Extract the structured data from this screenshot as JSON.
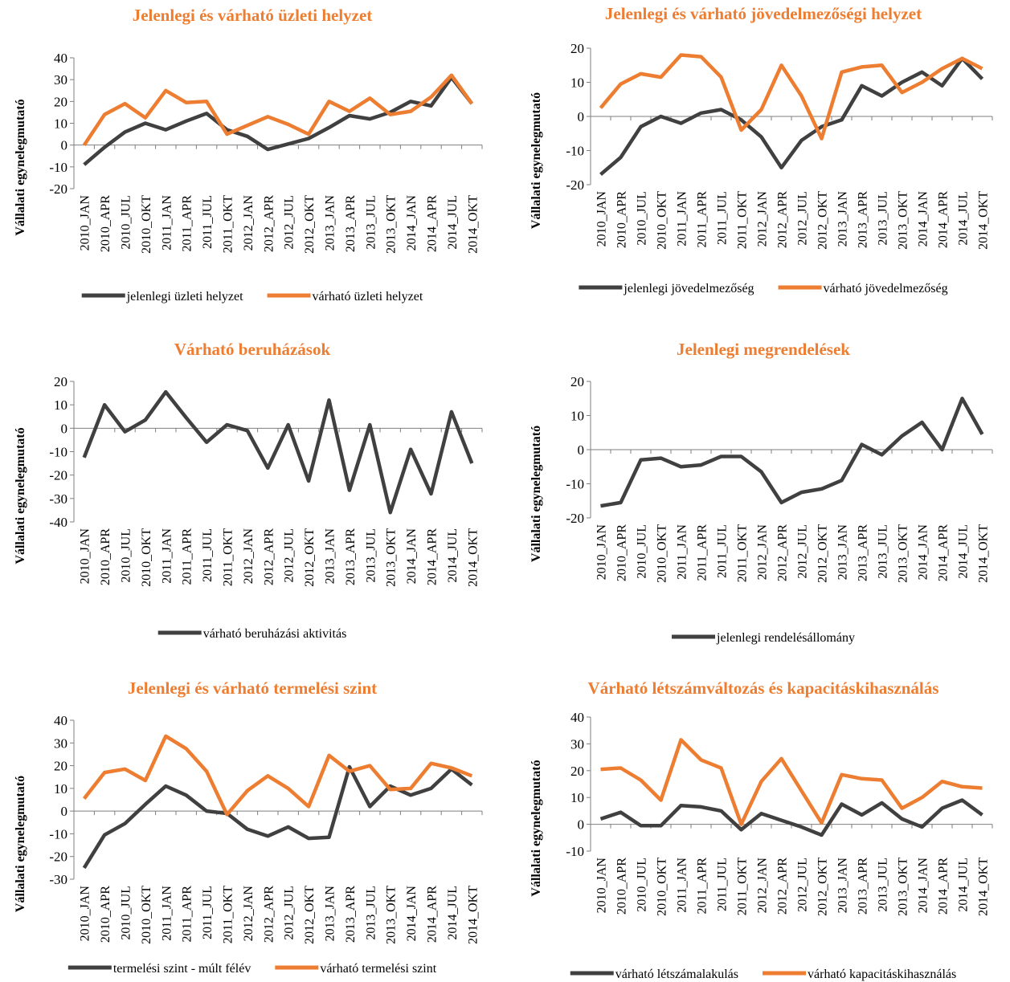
{
  "chart_data": [
    {
      "type": "line",
      "title": "Jelenlegi és várható üzleti helyzet",
      "y_label": "Vállalati egynelegmutató",
      "categories": [
        "2010_JAN",
        "2010_APR",
        "2010_JUL",
        "2010_OKT",
        "2011_JAN",
        "2011_APR",
        "2011_JUL",
        "2011_OKT",
        "2012_JAN",
        "2012_APR",
        "2012_JUL",
        "2012_OKT",
        "2013_JAN",
        "2013_APR",
        "2013_JUL",
        "2013_OKT",
        "2014_JAN",
        "2014_APR",
        "2014_JUL",
        "2014_OKT"
      ],
      "series": [
        {
          "name": "jelenlegi üzleti helyzet",
          "color": "#404040",
          "values": [
            -9,
            -1,
            6,
            10,
            7,
            11,
            14.5,
            7,
            4,
            -2,
            0.5,
            3,
            8,
            13.5,
            12,
            15,
            20,
            18,
            31,
            19
          ]
        },
        {
          "name": "várható üzleti helyzet",
          "color": "#ed7d31",
          "values": [
            0,
            14,
            19,
            12.5,
            25,
            19.5,
            20,
            5,
            9,
            13,
            9.5,
            5,
            20,
            15.5,
            21.5,
            14,
            15.5,
            22,
            32,
            19
          ]
        }
      ],
      "ylim": [
        -20,
        40
      ],
      "yticks": [
        -20,
        -10,
        0,
        10,
        20,
        30,
        40
      ]
    },
    {
      "type": "line",
      "title": "Jelenlegi és várható jövedelmezőségi helyzet",
      "y_label": "Vállalati egynelegmutató",
      "categories": [
        "2010_JAN",
        "2010_APR",
        "2010_JUL",
        "2010_OKT",
        "2011_JAN",
        "2011_APR",
        "2011_JUL",
        "2011_OKT",
        "2012_JAN",
        "2012_APR",
        "2012_JUL",
        "2012_OKT",
        "2013_JAN",
        "2013_APR",
        "2013_JUL",
        "2013_OKT",
        "2014_JAN",
        "2014_APR",
        "2014_JUL",
        "2014_OKT"
      ],
      "series": [
        {
          "name": "jelenlegi jövedelmezőség",
          "color": "#404040",
          "values": [
            -17,
            -12,
            -3,
            0,
            -2,
            1,
            2,
            -1,
            -6,
            -15,
            -7,
            -3,
            -1,
            9,
            6,
            10,
            13,
            9,
            17,
            11
          ]
        },
        {
          "name": "várható jövedelmezőség",
          "color": "#ed7d31",
          "values": [
            2.5,
            9.5,
            12.5,
            11.5,
            18,
            17.5,
            11.5,
            -4,
            2,
            15,
            6,
            -6.5,
            13,
            14.5,
            15,
            7,
            10,
            14,
            17,
            14
          ]
        }
      ],
      "ylim": [
        -20,
        20
      ],
      "yticks": [
        -20,
        -10,
        0,
        10,
        20
      ]
    },
    {
      "type": "line",
      "title": "Várható beruházások",
      "y_label": "Vállalati egynelegmutató",
      "categories": [
        "2010_JAN",
        "2010_APR",
        "2010_JUL",
        "2010_OKT",
        "2011_JAN",
        "2011_APR",
        "2011_JUL",
        "2011_OKT",
        "2012_JAN",
        "2012_APR",
        "2012_JUL",
        "2012_OKT",
        "2013_JAN",
        "2013_APR",
        "2013_JUL",
        "2013_OKT",
        "2014_JAN",
        "2014_APR",
        "2014_JUL",
        "2014_OKT"
      ],
      "series": [
        {
          "name": "várható beruházási aktivitás",
          "color": "#404040",
          "values": [
            -12.5,
            10,
            -1.5,
            3.5,
            15.5,
            4.5,
            -6,
            1.5,
            -1,
            -17,
            1.5,
            -22.5,
            12,
            -26.5,
            1.5,
            -36,
            -9,
            -28,
            7,
            -15
          ]
        }
      ],
      "ylim": [
        -40,
        20
      ],
      "yticks": [
        -40,
        -30,
        -20,
        -10,
        0,
        10,
        20
      ]
    },
    {
      "type": "line",
      "title": "Jelenlegi megrendelések",
      "y_label": "Vállalati egynelegmutató",
      "categories": [
        "2010_JAN",
        "2010_APR",
        "2010_JUL",
        "2010_OKT",
        "2011_JAN",
        "2011_APR",
        "2011_JUL",
        "2011_OKT",
        "2012_JAN",
        "2012_APR",
        "2012_JUL",
        "2012_OKT",
        "2013_JAN",
        "2013_APR",
        "2013_JUL",
        "2013_OKT",
        "2014_JAN",
        "2014_APR",
        "2014_JUL",
        "2014_OKT"
      ],
      "series": [
        {
          "name": "jelenlegi rendelésállomány",
          "color": "#404040",
          "values": [
            -16.5,
            -15.5,
            -3,
            -2.5,
            -5,
            -4.5,
            -2,
            -2,
            -6.5,
            -15.5,
            -12.5,
            -11.5,
            -9,
            1.5,
            -1.5,
            4,
            8,
            0,
            15,
            4.5
          ]
        }
      ],
      "ylim": [
        -20,
        20
      ],
      "yticks": [
        -20,
        -10,
        0,
        10,
        20
      ]
    },
    {
      "type": "line",
      "title": "Jelenlegi és várható termelési szint",
      "y_label": "Vállalati egynelegmutató",
      "categories": [
        "2010_JAN",
        "2010_APR",
        "2010_JUL",
        "2010_OKT",
        "2011_JAN",
        "2011_APR",
        "2011_JUL",
        "2011_OKT",
        "2012_JAN",
        "2012_APR",
        "2012_JUL",
        "2012_OKT",
        "2013_JAN",
        "2013_APR",
        "2013_JUL",
        "2013_OKT",
        "2014_JAN",
        "2014_APR",
        "2014_JUL",
        "2014_OKT"
      ],
      "series": [
        {
          "name": "termelési szint - múlt félév",
          "color": "#404040",
          "values": [
            -25,
            -10.5,
            -5.5,
            3,
            11,
            7,
            0,
            -1,
            -8,
            -11,
            -7,
            -12,
            -11.5,
            19.5,
            2,
            11,
            7,
            10,
            18.5,
            11.5
          ]
        },
        {
          "name": "várható termelési szint",
          "color": "#ed7d31",
          "values": [
            5.5,
            17,
            18.5,
            13.5,
            33,
            27.5,
            17.5,
            -1.5,
            9,
            15.5,
            10,
            2,
            24.5,
            17.5,
            20,
            9.5,
            10,
            21,
            19,
            15.5
          ]
        }
      ],
      "ylim": [
        -30,
        40
      ],
      "yticks": [
        -30,
        -20,
        -10,
        0,
        10,
        20,
        30,
        40
      ]
    },
    {
      "type": "line",
      "title": "Várható létszámváltozás és kapacitáskihasználás",
      "y_label": "Vállalati egynelegmutató",
      "categories": [
        "2010_JAN",
        "2010_APR",
        "2010_JUL",
        "2010_OKT",
        "2011_JAN",
        "2011_APR",
        "2011_JUL",
        "2011_OKT",
        "2012_JAN",
        "2012_APR",
        "2012_JUL",
        "2012_OKT",
        "2013_JAN",
        "2013_APR",
        "2013_JUL",
        "2013_OKT",
        "2014_JAN",
        "2014_APR",
        "2014_JUL",
        "2014_OKT"
      ],
      "series": [
        {
          "name": "várható létszámalakulás",
          "color": "#404040",
          "values": [
            2,
            4.5,
            -0.5,
            -0.5,
            7,
            6.5,
            5,
            -2,
            4,
            1.5,
            -1,
            -4,
            7.5,
            3.5,
            8,
            2,
            -1,
            6,
            9,
            3.5
          ]
        },
        {
          "name": "várható kapacitáskihasználás",
          "color": "#ed7d31",
          "values": [
            20.5,
            21,
            16.5,
            9,
            31.5,
            24,
            21,
            0,
            16,
            24.5,
            12.5,
            0.5,
            18.5,
            17,
            16.5,
            6,
            10,
            16,
            14,
            13.5
          ]
        }
      ],
      "ylim": [
        -10,
        40
      ],
      "yticks": [
        -10,
        0,
        10,
        20,
        30,
        40
      ]
    }
  ]
}
